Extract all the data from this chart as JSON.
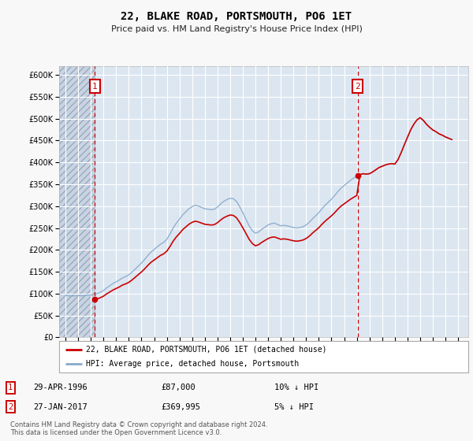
{
  "title": "22, BLAKE ROAD, PORTSMOUTH, PO6 1ET",
  "subtitle": "Price paid vs. HM Land Registry's House Price Index (HPI)",
  "legend_line1": "22, BLAKE ROAD, PORTSMOUTH, PO6 1ET (detached house)",
  "legend_line2": "HPI: Average price, detached house, Portsmouth",
  "annotation1_date": "29-APR-1996",
  "annotation1_price": "£87,000",
  "annotation1_hpi": "10% ↓ HPI",
  "annotation1_year": 1996.32,
  "annotation1_value": 87000,
  "annotation2_date": "27-JAN-2017",
  "annotation2_price": "£369,995",
  "annotation2_hpi": "5% ↓ HPI",
  "annotation2_year": 2017.07,
  "annotation2_value": 369995,
  "price_paid_color": "#cc0000",
  "hpi_color": "#88aacc",
  "dashed_line_color": "#cc0000",
  "annotation_box_color": "#cc0000",
  "plot_bg_color": "#dce6f1",
  "grid_color": "#ffffff",
  "fig_bg_color": "#f8f8f8",
  "ylim": [
    0,
    620000
  ],
  "yticks": [
    0,
    50000,
    100000,
    150000,
    200000,
    250000,
    300000,
    350000,
    400000,
    450000,
    500000,
    550000,
    600000
  ],
  "xlim_start": 1993.5,
  "xlim_end": 2025.8,
  "xticks": [
    1994,
    1995,
    1996,
    1997,
    1998,
    1999,
    2000,
    2001,
    2002,
    2003,
    2004,
    2005,
    2006,
    2007,
    2008,
    2009,
    2010,
    2011,
    2012,
    2013,
    2014,
    2015,
    2016,
    2017,
    2018,
    2019,
    2020,
    2021,
    2022,
    2023,
    2024,
    2025
  ],
  "footnote": "Contains HM Land Registry data © Crown copyright and database right 2024.\nThis data is licensed under the Open Government Licence v3.0.",
  "hpi_data_years": [
    1994.0,
    1994.25,
    1994.5,
    1994.75,
    1995.0,
    1995.25,
    1995.5,
    1995.75,
    1996.0,
    1996.25,
    1996.5,
    1996.75,
    1997.0,
    1997.25,
    1997.5,
    1997.75,
    1998.0,
    1998.25,
    1998.5,
    1998.75,
    1999.0,
    1999.25,
    1999.5,
    1999.75,
    2000.0,
    2000.25,
    2000.5,
    2000.75,
    2001.0,
    2001.25,
    2001.5,
    2001.75,
    2002.0,
    2002.25,
    2002.5,
    2002.75,
    2003.0,
    2003.25,
    2003.5,
    2003.75,
    2004.0,
    2004.25,
    2004.5,
    2004.75,
    2005.0,
    2005.25,
    2005.5,
    2005.75,
    2006.0,
    2006.25,
    2006.5,
    2006.75,
    2007.0,
    2007.25,
    2007.5,
    2007.75,
    2008.0,
    2008.25,
    2008.5,
    2008.75,
    2009.0,
    2009.25,
    2009.5,
    2009.75,
    2010.0,
    2010.25,
    2010.5,
    2010.75,
    2011.0,
    2011.25,
    2011.5,
    2011.75,
    2012.0,
    2012.25,
    2012.5,
    2012.75,
    2013.0,
    2013.25,
    2013.5,
    2013.75,
    2014.0,
    2014.25,
    2014.5,
    2014.75,
    2015.0,
    2015.25,
    2015.5,
    2015.75,
    2016.0,
    2016.25,
    2016.5,
    2016.75,
    2017.0,
    2017.25,
    2017.5,
    2017.75,
    2018.0,
    2018.25,
    2018.5,
    2018.75,
    2019.0,
    2019.25,
    2019.5,
    2019.75,
    2020.0,
    2020.25,
    2020.5,
    2020.75,
    2021.0,
    2021.25,
    2021.5,
    2021.75,
    2022.0,
    2022.25,
    2022.5,
    2022.75,
    2023.0,
    2023.25,
    2023.5,
    2023.75,
    2024.0,
    2024.25,
    2024.5
  ],
  "hpi_data_values": [
    96000,
    95000,
    94500,
    95000,
    95500,
    95000,
    95500,
    96500,
    97000,
    98500,
    100000,
    103000,
    107000,
    113000,
    118000,
    123000,
    127000,
    131000,
    136000,
    139000,
    143000,
    149000,
    156000,
    163000,
    170000,
    178000,
    187000,
    195000,
    201000,
    207000,
    213000,
    217000,
    224000,
    236000,
    250000,
    261000,
    270000,
    280000,
    287000,
    294000,
    299000,
    302000,
    300000,
    297000,
    294000,
    293000,
    292000,
    293000,
    298000,
    305000,
    311000,
    315000,
    318000,
    317000,
    311000,
    299000,
    285000,
    270000,
    255000,
    244000,
    238000,
    241000,
    247000,
    252000,
    257000,
    260000,
    261000,
    258000,
    255000,
    256000,
    255000,
    253000,
    251000,
    250000,
    251000,
    253000,
    257000,
    263000,
    271000,
    278000,
    285000,
    294000,
    302000,
    309000,
    316000,
    324000,
    333000,
    341000,
    347000,
    353000,
    359000,
    364000,
    369000,
    372000,
    374000,
    373000,
    374000,
    378000,
    383000,
    388000,
    391000,
    394000,
    396000,
    397000,
    396000,
    406000,
    422000,
    440000,
    457000,
    474000,
    487000,
    497000,
    502000,
    496000,
    487000,
    480000,
    474000,
    470000,
    465000,
    462000,
    458000,
    455000,
    452000
  ],
  "price_paid_years": [
    1996.32,
    2017.07
  ],
  "price_paid_values": [
    87000,
    369995
  ]
}
